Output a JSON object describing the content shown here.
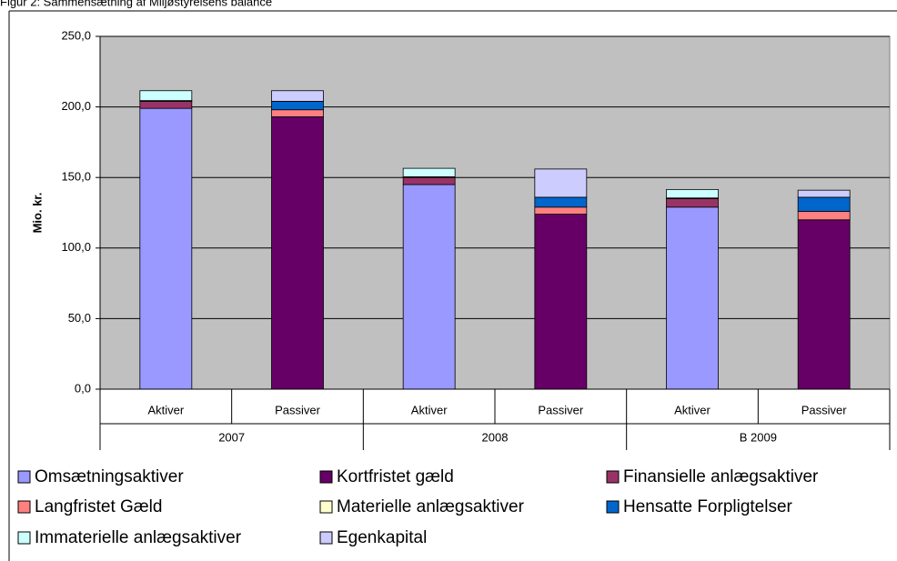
{
  "chart_data": {
    "type": "stacked_bar",
    "title": "Figur 2: Sammensætning af Miljøstyrelsens balance",
    "y_label": "Mio. kr.",
    "categories": [
      "Aktiver",
      "Passiver",
      "Aktiver",
      "Passiver",
      "Aktiver",
      "Passiver"
    ],
    "groups": [
      "2007",
      "2008",
      "B 2009"
    ],
    "ylim": [
      0,
      250
    ],
    "yticks": [
      {
        "value": 0,
        "label": "0,0"
      },
      {
        "value": 50,
        "label": "50,0"
      },
      {
        "value": 100,
        "label": "100,0"
      },
      {
        "value": 150,
        "label": "150,0"
      },
      {
        "value": 200,
        "label": "200,0"
      },
      {
        "value": 250,
        "label": "250,0"
      }
    ],
    "grid": true,
    "series": [
      {
        "name": "Omsætningsaktiver",
        "color": "#9999ff",
        "values": [
          199,
          null,
          145,
          null,
          129,
          null
        ]
      },
      {
        "name": "Kortfristet gæld",
        "color": "#660066",
        "values": [
          null,
          193,
          null,
          124,
          null,
          120
        ]
      },
      {
        "name": "Finansielle anlægsaktiver",
        "color": "#993366",
        "values": [
          5,
          null,
          5,
          null,
          6,
          null
        ]
      },
      {
        "name": "Langfristet Gæld",
        "color": "#ff8080",
        "values": [
          null,
          5,
          null,
          5,
          null,
          6
        ]
      },
      {
        "name": "Materielle anlægsaktiver",
        "color": "#ffffcc",
        "values": [
          0.5,
          null,
          0.5,
          null,
          0.5,
          null
        ]
      },
      {
        "name": "Hensatte Forpligtelser",
        "color": "#0066cc",
        "values": [
          null,
          6,
          null,
          7,
          null,
          10
        ]
      },
      {
        "name": "Immaterielle anlægsaktiver",
        "color": "#ccffff",
        "values": [
          7,
          null,
          6,
          null,
          6,
          null
        ]
      },
      {
        "name": "Egenkapital",
        "color": "#ccccff",
        "values": [
          null,
          7.5,
          null,
          20,
          null,
          5
        ]
      }
    ]
  }
}
